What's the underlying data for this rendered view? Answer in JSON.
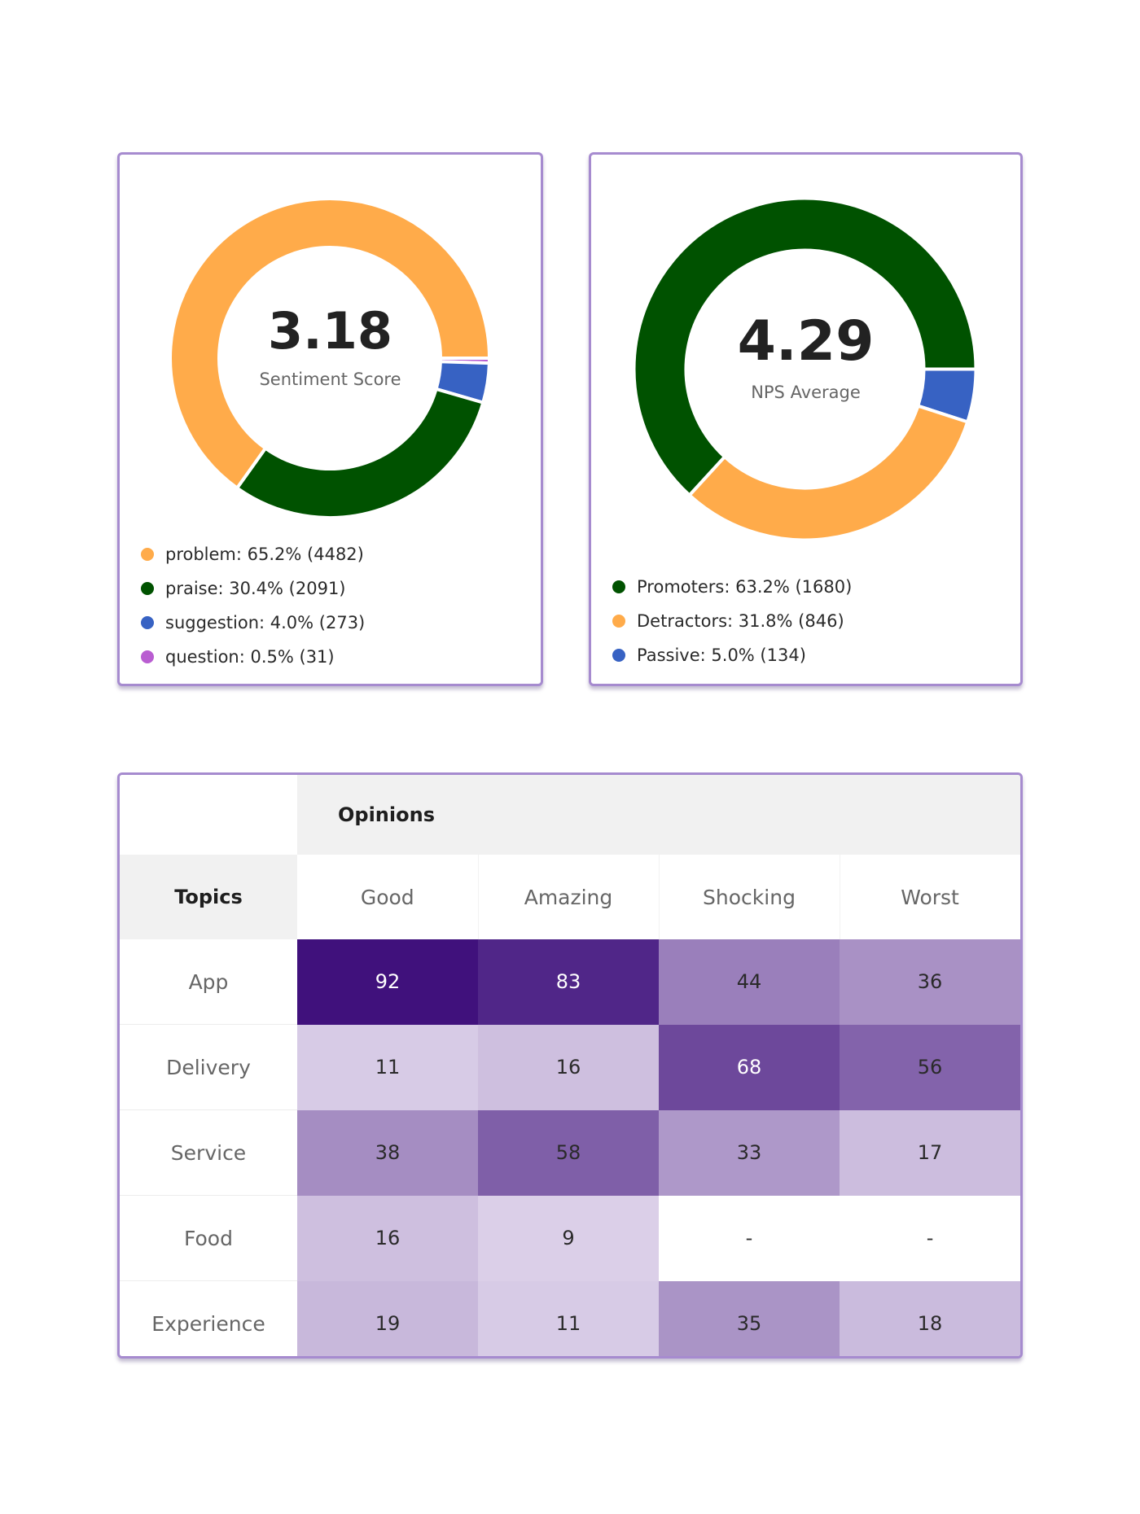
{
  "sentiment": {
    "value": "3.18",
    "label": "Sentiment Score",
    "legend": [
      {
        "text": "problem: 65.2% (4482)",
        "color": "#ffab4a"
      },
      {
        "text": "praise: 30.4% (2091)",
        "color": "#005200"
      },
      {
        "text": "suggestion: 4.0% (273)",
        "color": "#3762c3"
      },
      {
        "text": "question: 0.5% (31)",
        "color": "#b95dd1"
      }
    ]
  },
  "nps": {
    "value": "4.29",
    "label": "NPS Average",
    "legend": [
      {
        "text": "Promoters: 63.2% (1680)",
        "color": "#005200"
      },
      {
        "text": "Detractors: 31.8% (846)",
        "color": "#ffab4a"
      },
      {
        "text": "Passive: 5.0% (134)",
        "color": "#3762c3"
      }
    ]
  },
  "chart_data": [
    {
      "type": "pie",
      "categories": [
        "problem",
        "praise",
        "suggestion",
        "question"
      ],
      "values": [
        65.2,
        30.4,
        4.0,
        0.5
      ],
      "counts": [
        4482,
        2091,
        273,
        31
      ],
      "colors": [
        "#ffab4a",
        "#005200",
        "#3762c3",
        "#b95dd1"
      ],
      "order_clockwise_from_right": [
        "question",
        "suggestion",
        "praise",
        "problem"
      ]
    },
    {
      "type": "pie",
      "categories": [
        "Promoters",
        "Detractors",
        "Passive"
      ],
      "values": [
        63.2,
        31.8,
        5.0
      ],
      "counts": [
        1680,
        846,
        134
      ],
      "colors": [
        "#005200",
        "#ffab4a",
        "#3762c3"
      ],
      "order_clockwise_from_right": [
        "Passive",
        "Detractors",
        "Promoters"
      ]
    },
    {
      "type": "heatmap",
      "header": "Opinions",
      "row_header": "Topics",
      "columns": [
        "Good",
        "Amazing",
        "Shocking",
        "Worst"
      ],
      "rows": [
        {
          "label": "App",
          "values": [
            "92",
            "83",
            "44",
            "36"
          ]
        },
        {
          "label": "Delivery",
          "values": [
            "11",
            "16",
            "68",
            "56"
          ]
        },
        {
          "label": "Service",
          "values": [
            "38",
            "58",
            "33",
            "17"
          ]
        },
        {
          "label": "Food",
          "values": [
            "16",
            "9",
            "-",
            "-"
          ]
        },
        {
          "label": "Experience",
          "values": [
            "19",
            "11",
            "35",
            "18"
          ]
        }
      ]
    }
  ]
}
